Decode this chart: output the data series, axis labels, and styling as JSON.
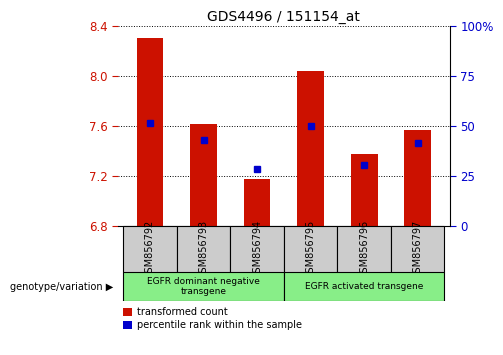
{
  "title": "GDS4496 / 151154_at",
  "samples": [
    "GSM856792",
    "GSM856793",
    "GSM856794",
    "GSM856795",
    "GSM856796",
    "GSM856797"
  ],
  "bar_tops": [
    8.31,
    7.62,
    7.18,
    8.04,
    7.38,
    7.57
  ],
  "bar_bottom": 6.8,
  "blue_squares": [
    7.63,
    7.49,
    7.26,
    7.6,
    7.29,
    7.47
  ],
  "ylim": [
    6.8,
    8.4
  ],
  "yticks_left": [
    6.8,
    7.2,
    7.6,
    8.0,
    8.4
  ],
  "yticks_right": [
    0,
    25,
    50,
    75,
    100
  ],
  "yticks_right_vals": [
    6.8,
    7.2,
    7.6,
    8.0,
    8.4
  ],
  "bar_color": "#cc1100",
  "blue_color": "#0000cc",
  "grid_color": "#000000",
  "title_color": "#000000",
  "left_tick_color": "#cc1100",
  "right_tick_color": "#0000cc",
  "group1_label": "EGFR dominant negative\ntransgene",
  "group2_label": "EGFR activated transgene",
  "group1_indices": [
    0,
    1,
    2
  ],
  "group2_indices": [
    3,
    4,
    5
  ],
  "group_bg_color": "#88ee88",
  "sample_box_color": "#cccccc",
  "legend_red_label": "transformed count",
  "legend_blue_label": "percentile rank within the sample",
  "xlabel_label": "genotype/variation",
  "bar_width": 0.5
}
